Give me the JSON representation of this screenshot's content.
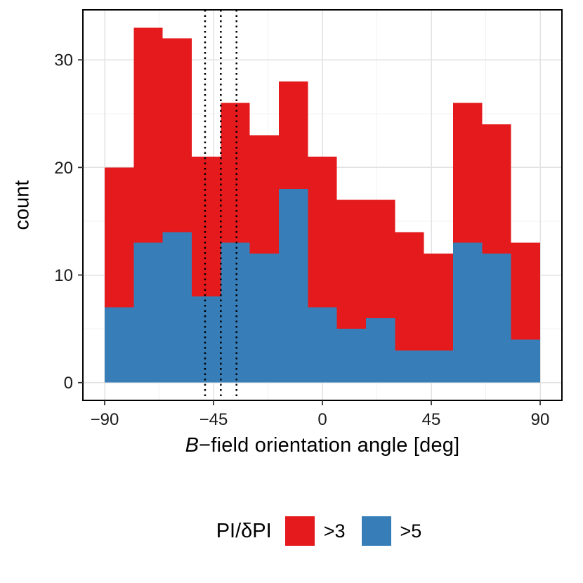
{
  "figure": {
    "background": "#ffffff"
  },
  "chart_data": {
    "type": "histogram",
    "position": "identity-overlay",
    "title": "",
    "xlabel_italic": "B",
    "xlabel_rest": "−field orientation angle [deg]",
    "ylabel": "count",
    "bin_start": -90,
    "bin_width": 12,
    "xlim": [
      -99,
      99
    ],
    "ylim": [
      -1.65,
      34.65
    ],
    "x_ticks": {
      "values": [
        -90,
        -45,
        0,
        45,
        90
      ],
      "labels": [
        "−90",
        "−45",
        "0",
        "45",
        "90"
      ]
    },
    "y_ticks": {
      "values": [
        0,
        10,
        20,
        30
      ],
      "labels": [
        "0",
        "10",
        "20",
        "30"
      ]
    },
    "grid": {
      "minor_y": [
        5,
        15,
        25
      ],
      "minor_x": [
        -67.5,
        -22.5,
        22.5,
        67.5
      ],
      "major_color": "#e2e2e2",
      "minor_color": "#f1f1f1"
    },
    "series": [
      {
        "name": ">3",
        "color": "#e41a1c",
        "values": [
          20,
          33,
          32,
          21,
          26,
          23,
          28,
          21,
          17,
          17,
          14,
          12,
          26,
          24,
          13
        ]
      },
      {
        "name": ">5",
        "color": "#377eb8",
        "values": [
          7,
          13,
          14,
          8,
          13,
          12,
          18,
          7,
          5,
          6,
          3,
          3,
          13,
          12,
          4
        ]
      }
    ],
    "vlines": {
      "values": [
        -48.5,
        -42,
        -35.5
      ],
      "style": "dotted",
      "color": "#000000"
    },
    "legend": {
      "title": "PI/δPI",
      "position": "bottom",
      "items": [
        {
          "label": ">3",
          "color": "#e41a1c"
        },
        {
          "label": ">5",
          "color": "#377eb8"
        }
      ]
    }
  }
}
